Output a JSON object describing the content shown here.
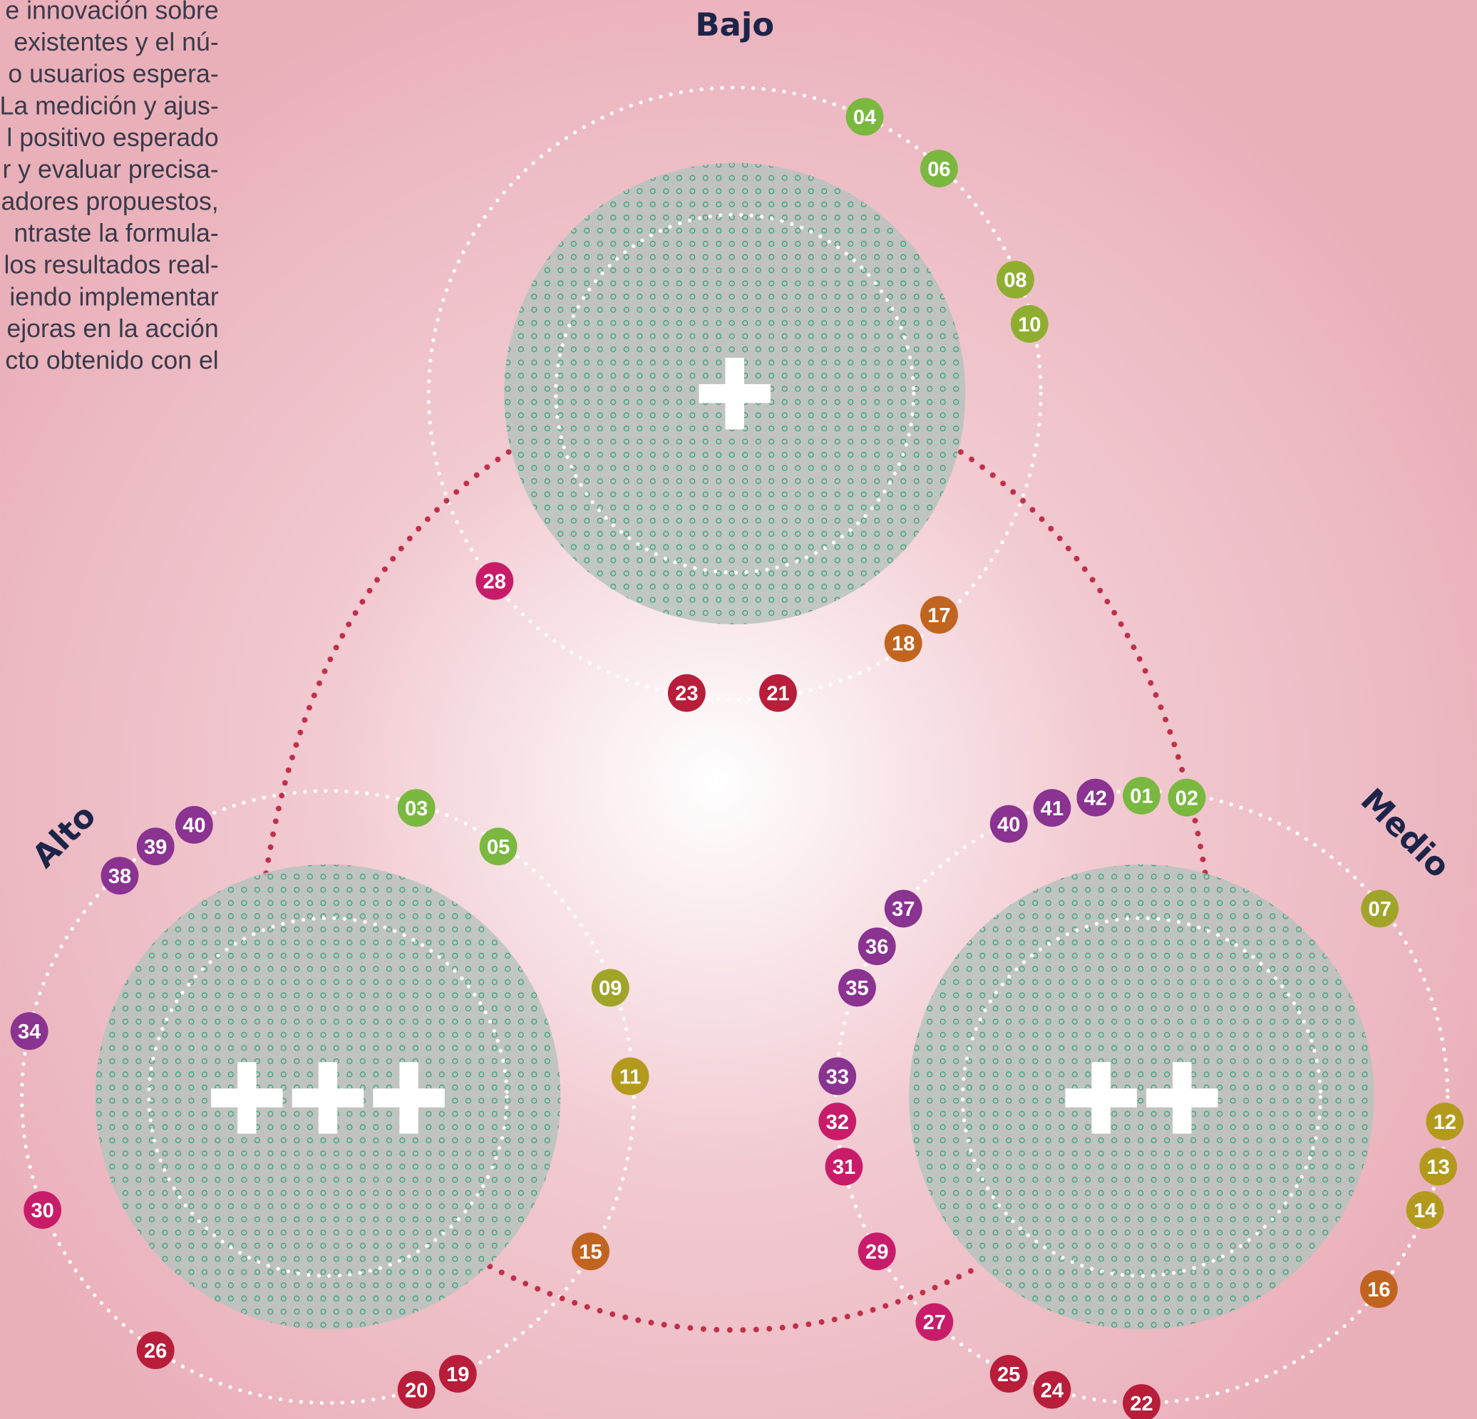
{
  "text_lines": [
    "e innovación sobre",
    "existentes y el nú-",
    "o usuarios espera-",
    "La medición y ajus-",
    "l positivo esperado",
    "r y evaluar precisa-",
    "adores propuestos,",
    "ntraste la formula-",
    "los resultados real-",
    "iendo implementar",
    "ejoras en la acción",
    "cto obtenido con el"
  ],
  "labels": {
    "top": "Bajo",
    "left": "Alto",
    "right": "Medio"
  },
  "badges": [
    {
      "label": "04",
      "color": "#7ab840"
    },
    {
      "label": "06",
      "color": "#7ab840"
    },
    {
      "label": "08",
      "color": "#8fae30"
    },
    {
      "label": "10",
      "color": "#8fae30"
    },
    {
      "label": "28",
      "color": "#c81c6a"
    },
    {
      "label": "17",
      "color": "#c0641f"
    },
    {
      "label": "18",
      "color": "#c0641f"
    },
    {
      "label": "23",
      "color": "#b81d3a"
    },
    {
      "label": "21",
      "color": "#b81d3a"
    },
    {
      "label": "03",
      "color": "#7ab840"
    },
    {
      "label": "05",
      "color": "#7ab840"
    },
    {
      "label": "40",
      "color": "#8a3390"
    },
    {
      "label": "39",
      "color": "#8a3390"
    },
    {
      "label": "38",
      "color": "#8a3390"
    },
    {
      "label": "40",
      "color": "#8a3390"
    },
    {
      "label": "41",
      "color": "#8a3390"
    },
    {
      "label": "42",
      "color": "#8a3390"
    },
    {
      "label": "01",
      "color": "#7ab840"
    },
    {
      "label": "02",
      "color": "#7ab840"
    },
    {
      "label": "07",
      "color": "#a0a52a"
    },
    {
      "label": "37",
      "color": "#8a3390"
    },
    {
      "label": "36",
      "color": "#8a3390"
    },
    {
      "label": "35",
      "color": "#8a3390"
    },
    {
      "label": "09",
      "color": "#a0a52a"
    },
    {
      "label": "11",
      "color": "#b39a1d"
    },
    {
      "label": "33",
      "color": "#8a3390"
    },
    {
      "label": "32",
      "color": "#c81c6a"
    },
    {
      "label": "31",
      "color": "#c81c6a"
    },
    {
      "label": "34",
      "color": "#8a3390"
    },
    {
      "label": "30",
      "color": "#c81c6a"
    },
    {
      "label": "15",
      "color": "#c0641f"
    },
    {
      "label": "29",
      "color": "#c81c6a"
    },
    {
      "label": "12",
      "color": "#b39a1d"
    },
    {
      "label": "13",
      "color": "#b39a1d"
    },
    {
      "label": "14",
      "color": "#b39a1d"
    },
    {
      "label": "16",
      "color": "#c0641f"
    },
    {
      "label": "26",
      "color": "#b81d3a"
    },
    {
      "label": "27",
      "color": "#c81c6a"
    },
    {
      "label": "19",
      "color": "#b81d3a"
    },
    {
      "label": "20",
      "color": "#b81d3a"
    },
    {
      "label": "25",
      "color": "#b81d3a"
    },
    {
      "label": "24",
      "color": "#b81d3a"
    },
    {
      "label": "22",
      "color": "#b81d3a"
    }
  ]
}
